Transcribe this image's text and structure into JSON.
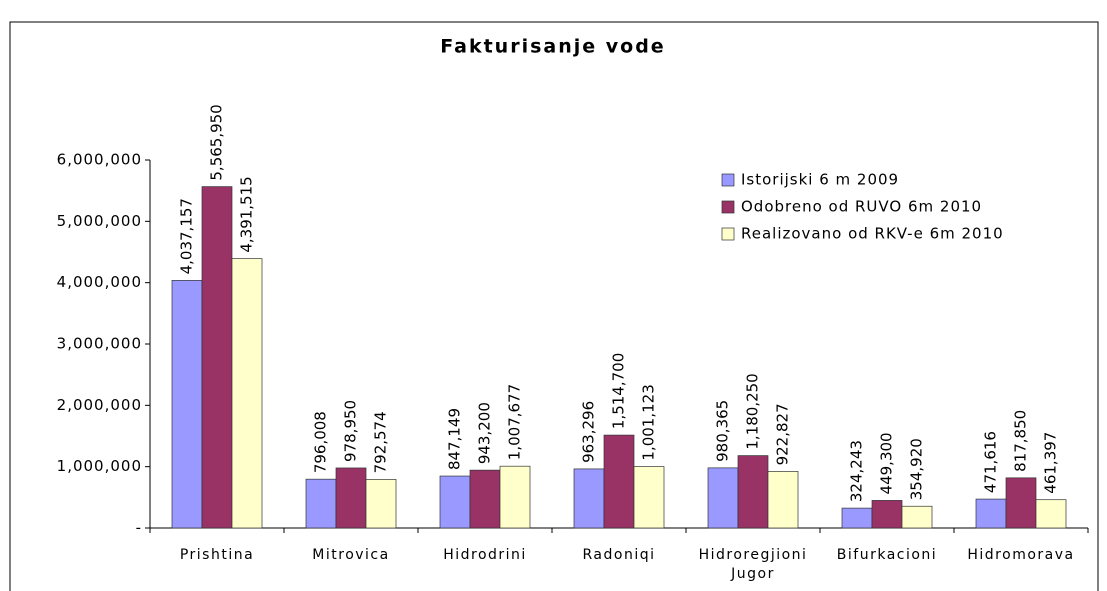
{
  "chart_data": {
    "type": "bar",
    "title": "Fakturisanje vode",
    "categories": [
      "Prishtina",
      "Mitrovica",
      "Hidrodrini",
      "Radoniqi",
      "Hidroregjioni Jugor",
      "Bifurkacioni",
      "Hidromorava"
    ],
    "series": [
      {
        "name": "Istorijski 6 m 2009",
        "color": "#9999ff",
        "values": [
          4037157,
          796008,
          847149,
          963296,
          980365,
          324243,
          471616
        ],
        "value_labels": [
          "4,037,157",
          "796,008",
          "847,149",
          "963,296",
          "980,365",
          "324,243",
          "471,616"
        ]
      },
      {
        "name": "Odobreno od RUVO 6m 2010",
        "color": "#993366",
        "values": [
          5565950,
          978950,
          943200,
          1514700,
          1180250,
          449300,
          817850
        ],
        "value_labels": [
          "5,565,950",
          "978,950",
          "943,200",
          "1,514,700",
          "1,180,250",
          "449,300",
          "817,850"
        ]
      },
      {
        "name": "Realizovano od RKV-e 6m 2010",
        "color": "#ffffcc",
        "values": [
          4391515,
          792574,
          1007677,
          1001123,
          922827,
          354920,
          461397
        ],
        "value_labels": [
          "4,391,515",
          "792,574",
          "1,007,677",
          "1,001,123",
          "922,827",
          "354,920",
          "461,397"
        ]
      }
    ],
    "ylim": [
      0,
      6000000
    ],
    "yticks": [
      {
        "value": 0,
        "label": "-"
      },
      {
        "value": 1000000,
        "label": "1,000,000"
      },
      {
        "value": 2000000,
        "label": "2,000,000"
      },
      {
        "value": 3000000,
        "label": "3,000,000"
      },
      {
        "value": 4000000,
        "label": "4,000,000"
      },
      {
        "value": 5000000,
        "label": "5,000,000"
      },
      {
        "value": 6000000,
        "label": "6,000,000"
      }
    ],
    "legend": "right",
    "grid": false
  }
}
